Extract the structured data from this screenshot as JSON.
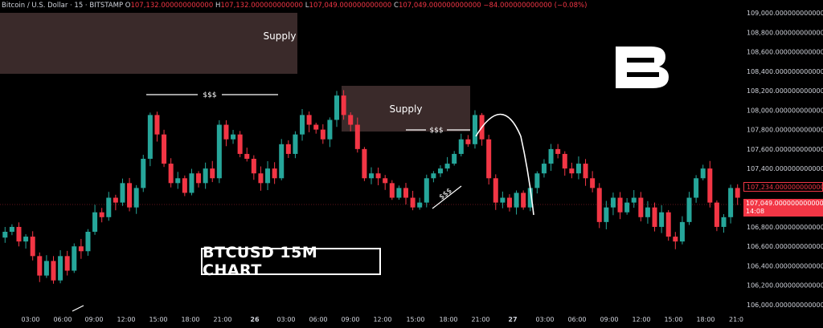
{
  "header": {
    "symbol": "Bitcoin / U.S. Dollar · 15 · BITSTAMP",
    "o_label": "O",
    "o_value": "107,132.000000000000",
    "h_label": "H",
    "h_value": "107,132.000000000000",
    "l_label": "L",
    "l_value": "107,049.000000000000",
    "c_label": "C",
    "c_value": "107,049.000000000000",
    "change": "−84.000000000000 (−0.08%)"
  },
  "title_box": "BTCUSD 15M CHART",
  "logo": "B",
  "annotations": {
    "supply_1": "Supply",
    "supply_2": "Supply",
    "liq_1": "$$$",
    "liq_2": "$$$",
    "liq_3": "$$$"
  },
  "price_tags": {
    "line_price": "107,234.000000000000",
    "last_price": "107,049.000000000000",
    "countdown": "14:08"
  },
  "colors": {
    "background": "#000000",
    "bull": "#26a69a",
    "bear": "#f23645",
    "supply_zone": "#3a2a2a",
    "text": "#d1d4dc"
  },
  "chart_data": {
    "type": "candlestick",
    "ylim": [
      106000,
      109000
    ],
    "x_ticks": [
      "03:00",
      "06:00",
      "09:00",
      "12:00",
      "15:00",
      "18:00",
      "21:00",
      "26",
      "03:00",
      "06:00",
      "09:00",
      "12:00",
      "15:00",
      "18:00",
      "21:00",
      "27",
      "03:00",
      "06:00",
      "09:00",
      "12:00",
      "15:00",
      "18:00",
      "21:0"
    ],
    "y_ticks": [
      "106,000.000000000000",
      "106,200.000000000000",
      "106,400.000000000000",
      "106,600.000000000000",
      "106,800.000000000000",
      "107,000.000000000000",
      "107,200.000000000000",
      "107,400.000000000000",
      "107,600.000000000000",
      "107,800.000000000000",
      "108,000.000000000000",
      "108,200.000000000000",
      "108,400.000000000000",
      "108,600.000000000000",
      "108,800.000000000000",
      "109,000.000000000000"
    ],
    "close_path": [
      106750,
      106800,
      106650,
      106700,
      106500,
      106300,
      106450,
      106250,
      106500,
      106350,
      106600,
      106550,
      106750,
      106950,
      106900,
      107100,
      107050,
      107250,
      107000,
      107200,
      107500,
      107950,
      107750,
      107450,
      107250,
      107300,
      107150,
      107350,
      107250,
      107400,
      107300,
      107850,
      107700,
      107750,
      107550,
      107500,
      107350,
      107250,
      107400,
      107300,
      107650,
      107550,
      107750,
      107950,
      107850,
      107800,
      107700,
      107900,
      108150,
      107950,
      107850,
      107600,
      107300,
      107350,
      107300,
      107250,
      107100,
      107200,
      107100,
      107000,
      107050,
      107300,
      107350,
      107400,
      107450,
      107550,
      107700,
      107650,
      107950,
      107700,
      107300,
      107050,
      107100,
      107000,
      107150,
      107000,
      107200,
      107350,
      107450,
      107600,
      107550,
      107400,
      107350,
      107450,
      107300,
      107200,
      106850,
      107000,
      107100,
      106950,
      107050,
      107100,
      106900,
      107000,
      106800,
      106950,
      106700,
      106650,
      106850,
      107100,
      107300,
      107400,
      107050,
      106800,
      106900,
      107200,
      107100
    ]
  }
}
